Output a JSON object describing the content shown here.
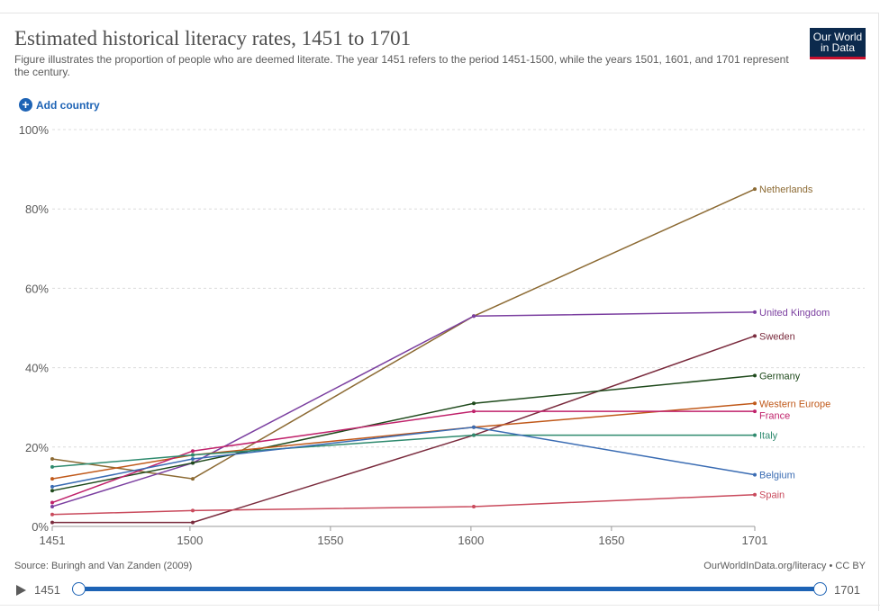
{
  "header": {
    "title": "Estimated historical literacy rates, 1451 to 1701",
    "subtitle": "Figure illustrates the proportion of people who are deemed literate. The year 1451 refers to the period 1451-1500, while the years 1501, 1601, and 1701 represent the century.",
    "logo_line1": "Our World",
    "logo_line2": "in Data"
  },
  "controls": {
    "add_country_label": "Add country",
    "add_icon": "plus-circle-icon"
  },
  "chart_data": {
    "type": "line",
    "title": "Estimated historical literacy rates, 1451 to 1701",
    "xlabel": "",
    "ylabel": "",
    "x": [
      1451,
      1501,
      1601,
      1701
    ],
    "x_ticks": [
      1451,
      1500,
      1550,
      1600,
      1650,
      1701
    ],
    "ylim": [
      0,
      100
    ],
    "y_ticks": [
      0,
      20,
      40,
      60,
      80,
      100
    ],
    "y_tick_labels": [
      "0%",
      "20%",
      "40%",
      "60%",
      "80%",
      "100%"
    ],
    "series": [
      {
        "name": "Netherlands",
        "color": "#8c6a33",
        "values": [
          17,
          12,
          53,
          85
        ]
      },
      {
        "name": "United Kingdom",
        "color": "#7b3fa0",
        "values": [
          5,
          16,
          53,
          54
        ]
      },
      {
        "name": "Sweden",
        "color": "#7a2b3d",
        "values": [
          1,
          1,
          23,
          48
        ]
      },
      {
        "name": "Germany",
        "color": "#1f4a1c",
        "values": [
          9,
          16,
          31,
          38
        ]
      },
      {
        "name": "Western Europe",
        "color": "#c0591a",
        "values": [
          12,
          18,
          25,
          31
        ]
      },
      {
        "name": "France",
        "color": "#c0226b",
        "values": [
          6,
          19,
          29,
          29
        ]
      },
      {
        "name": "Italy",
        "color": "#2e8a6e",
        "values": [
          15,
          18,
          23,
          23
        ]
      },
      {
        "name": "Belgium",
        "color": "#3a6cb3",
        "values": [
          10,
          17,
          25,
          13
        ]
      },
      {
        "name": "Spain",
        "color": "#c94a5c",
        "values": [
          3,
          4,
          5,
          8
        ]
      }
    ]
  },
  "footer": {
    "source": "Source: Buringh and Van Zanden (2009)",
    "credit": "OurWorldInData.org/literacy • CC BY"
  },
  "timeline": {
    "start_label": "1451",
    "end_label": "1701",
    "start_year": 1451,
    "end_year": 1701
  }
}
